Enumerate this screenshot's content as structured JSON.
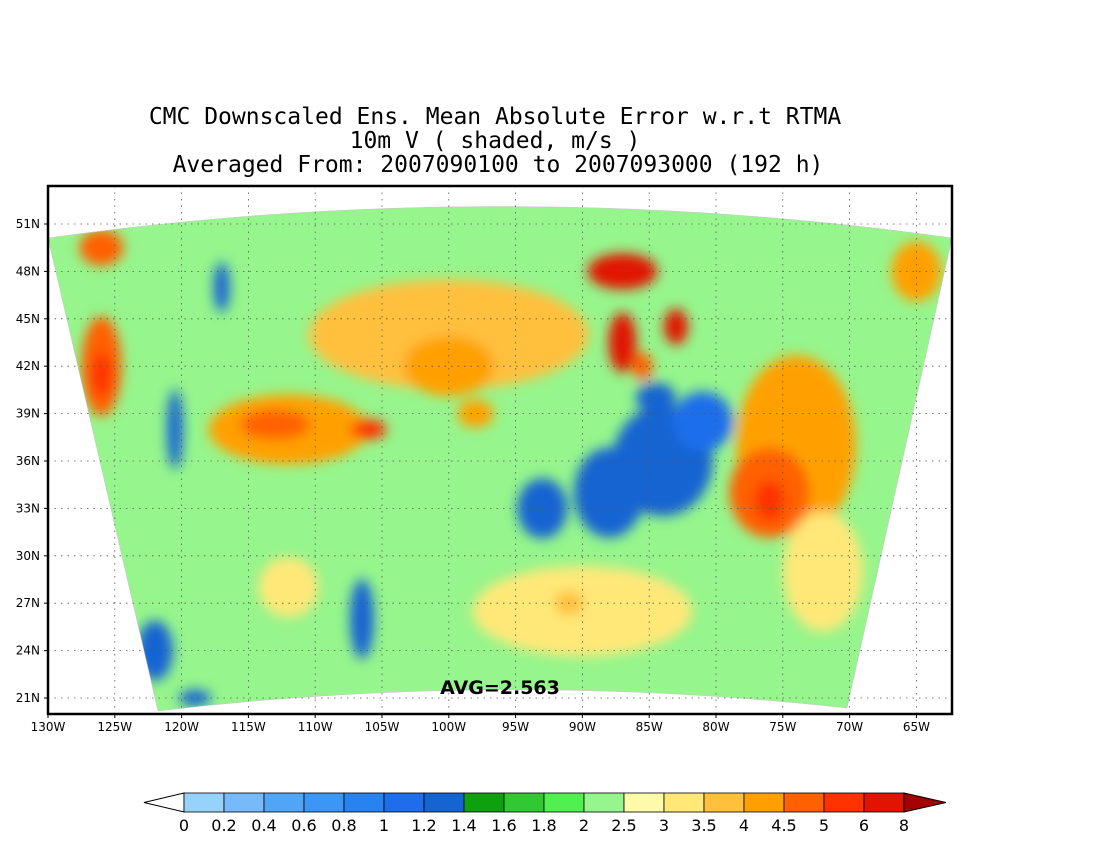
{
  "title": {
    "line1": "CMC Downscaled Ens. Mean Absolute Error w.r.t RTMA",
    "line2": "10m V ( shaded, m/s )",
    "line3": "Averaged From: 2007090100 to 2007093000 (192 h)"
  },
  "avg_label": "AVG=2.563",
  "map": {
    "lat_ticks": [
      "51N",
      "48N",
      "45N",
      "42N",
      "39N",
      "36N",
      "33N",
      "30N",
      "27N",
      "24N",
      "21N"
    ],
    "lon_ticks": [
      "130W",
      "125W",
      "120W",
      "115W",
      "110W",
      "105W",
      "100W",
      "95W",
      "90W",
      "85W",
      "80W",
      "75W",
      "70W",
      "65W"
    ],
    "grid": true
  },
  "colorbar": {
    "labels": [
      "0",
      "0.2",
      "0.4",
      "0.6",
      "0.8",
      "1",
      "1.2",
      "1.4",
      "1.6",
      "1.8",
      "2",
      "2.5",
      "3",
      "3.5",
      "4",
      "4.5",
      "5",
      "6",
      "8"
    ],
    "colors": [
      "#96d2fa",
      "#78b9fa",
      "#50a5f5",
      "#3c96f5",
      "#2882f0",
      "#1e6eeb",
      "#1464d2",
      "#0fa00f",
      "#32c832",
      "#50f050",
      "#96f58c",
      "#fffaaa",
      "#ffe878",
      "#ffc03c",
      "#ffa000",
      "#ff6000",
      "#ff3200",
      "#e11400",
      "#c00000"
    ],
    "under_color": "#ffffff",
    "over_color": "#a50000"
  },
  "blobs": [
    {
      "c": "#ffc03c",
      "lon": -100,
      "lat": 44,
      "rx": 140,
      "ry": 55
    },
    {
      "c": "#ffa000",
      "lon": -112,
      "lat": 38,
      "rx": 80,
      "ry": 35
    },
    {
      "c": "#ff6000",
      "lon": -113,
      "lat": 38.3,
      "rx": 35,
      "ry": 15
    },
    {
      "c": "#ff3200",
      "lon": -106,
      "lat": 38,
      "rx": 18,
      "ry": 10
    },
    {
      "c": "#ffa000",
      "lon": -100,
      "lat": 42,
      "rx": 45,
      "ry": 30
    },
    {
      "c": "#ffa000",
      "lon": -98,
      "lat": 39,
      "rx": 18,
      "ry": 14
    },
    {
      "c": "#ff6000",
      "lon": -126,
      "lat": 42,
      "rx": 20,
      "ry": 50
    },
    {
      "c": "#ff3200",
      "lon": -126,
      "lat": 41.5,
      "rx": 10,
      "ry": 22
    },
    {
      "c": "#ff6000",
      "lon": -126,
      "lat": 49.5,
      "rx": 22,
      "ry": 18
    },
    {
      "c": "#ffa000",
      "lon": -74,
      "lat": 37,
      "rx": 60,
      "ry": 90
    },
    {
      "c": "#ff6000",
      "lon": -76,
      "lat": 34,
      "rx": 40,
      "ry": 45
    },
    {
      "c": "#ff3200",
      "lon": -76,
      "lat": 33.5,
      "rx": 15,
      "ry": 20
    },
    {
      "c": "#ffa000",
      "lon": -65,
      "lat": 48,
      "rx": 25,
      "ry": 30
    },
    {
      "c": "#e11400",
      "lon": -87,
      "lat": 48,
      "rx": 35,
      "ry": 18
    },
    {
      "c": "#e11400",
      "lon": -87,
      "lat": 43.5,
      "rx": 14,
      "ry": 30
    },
    {
      "c": "#e11400",
      "lon": -83,
      "lat": 44.5,
      "rx": 12,
      "ry": 18
    },
    {
      "c": "#ff6000",
      "lon": -85.5,
      "lat": 42,
      "rx": 10,
      "ry": 14
    },
    {
      "c": "#1464d2",
      "lon": -88,
      "lat": 34,
      "rx": 35,
      "ry": 45
    },
    {
      "c": "#1464d2",
      "lon": -84,
      "lat": 36,
      "rx": 50,
      "ry": 55
    },
    {
      "c": "#1464d2",
      "lon": -93,
      "lat": 33,
      "rx": 25,
      "ry": 30
    },
    {
      "c": "#1e6eeb",
      "lon": -81,
      "lat": 38.5,
      "rx": 30,
      "ry": 30
    },
    {
      "c": "#1464d2",
      "lon": -84.5,
      "lat": 40,
      "rx": 20,
      "ry": 15
    },
    {
      "c": "#1464d2",
      "lon": -120.5,
      "lat": 38,
      "rx": 8,
      "ry": 40
    },
    {
      "c": "#1464d2",
      "lon": -117,
      "lat": 47,
      "rx": 8,
      "ry": 25
    },
    {
      "c": "#1464d2",
      "lon": -106.5,
      "lat": 26,
      "rx": 12,
      "ry": 40
    },
    {
      "c": "#1464d2",
      "lon": -122,
      "lat": 24,
      "rx": 18,
      "ry": 30
    },
    {
      "c": "#1464d2",
      "lon": -119,
      "lat": 21,
      "rx": 16,
      "ry": 8
    },
    {
      "c": "#ffe878",
      "lon": -90,
      "lat": 26.5,
      "rx": 110,
      "ry": 45
    },
    {
      "c": "#ffc03c",
      "lon": -91,
      "lat": 27,
      "rx": 15,
      "ry": 12
    },
    {
      "c": "#ffe878",
      "lon": -112,
      "lat": 28,
      "rx": 30,
      "ry": 30
    },
    {
      "c": "#ffe878",
      "lon": -72,
      "lat": 29,
      "rx": 40,
      "ry": 60
    }
  ]
}
